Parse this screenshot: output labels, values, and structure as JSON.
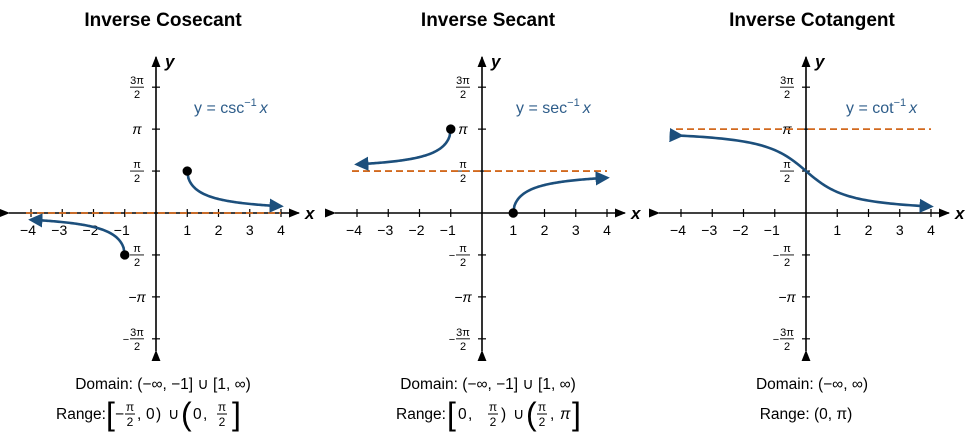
{
  "colors": {
    "curve": "#1c4f7c",
    "asymptote": "#d2691e",
    "axis": "#000000",
    "label": "#2e5d8a"
  },
  "chart_data": [
    {
      "type": "line",
      "title": "Inverse Cosecant",
      "equation": {
        "lhs": "y = csc",
        "sup": "−1",
        "var": "x"
      },
      "xlabel": "x",
      "ylabel": "y",
      "xlim": [
        -4,
        4
      ],
      "ylim": [
        -4.712,
        4.712
      ],
      "x_ticks": [
        "−4",
        "−3",
        "−2",
        "−1",
        "1",
        "2",
        "3",
        "4"
      ],
      "y_ticks": [
        {
          "top": "3π",
          "bottom": "2"
        },
        {
          "text": "π"
        },
        {
          "top": "π",
          "bottom": "2"
        },
        {
          "top": "π",
          "bottom": "2",
          "neg": true
        },
        {
          "text": "π",
          "neg": true
        },
        {
          "top": "3π",
          "bottom": "2",
          "neg": true
        }
      ],
      "function": "arccsc",
      "domain_pieces": [
        [
          1,
          4
        ],
        [
          -4,
          -1
        ]
      ],
      "endpoints": [
        {
          "x": 1,
          "y": 1.5708,
          "closed": true
        },
        {
          "x": -1,
          "y": -1.5708,
          "closed": true
        }
      ],
      "asymptotes": [
        0
      ],
      "domain_text": "Domain: (−∞, −1] ∪ [1, ∞)",
      "range": {
        "prefix": "Range:",
        "left_bracket": "[",
        "a_neg": "−",
        "a_top": "π",
        "a_bottom": "2",
        "comma1": ",",
        "a2": "0",
        "close1": ")",
        "union": "∪",
        "open2": "(",
        "b1": "0",
        "comma2": ",",
        "b_top": "π",
        "b_bottom": "2",
        "right_bracket": "]"
      }
    },
    {
      "type": "line",
      "title": "Inverse Secant",
      "equation": {
        "lhs": "y = sec",
        "sup": "−1",
        "var": "x"
      },
      "xlabel": "x",
      "ylabel": "y",
      "xlim": [
        -4,
        4
      ],
      "ylim": [
        -4.712,
        4.712
      ],
      "x_ticks": [
        "−4",
        "−3",
        "−2",
        "−1",
        "1",
        "2",
        "3",
        "4"
      ],
      "y_ticks": [
        {
          "top": "3π",
          "bottom": "2"
        },
        {
          "text": "π"
        },
        {
          "top": "π",
          "bottom": "2"
        },
        {
          "top": "π",
          "bottom": "2",
          "neg": true
        },
        {
          "text": "π",
          "neg": true
        },
        {
          "top": "3π",
          "bottom": "2",
          "neg": true
        }
      ],
      "function": "arcsec",
      "domain_pieces": [
        [
          1,
          4
        ],
        [
          -4,
          -1
        ]
      ],
      "endpoints": [
        {
          "x": 1,
          "y": 0,
          "closed": true
        },
        {
          "x": -1,
          "y": 3.1416,
          "closed": true
        }
      ],
      "asymptotes": [
        1.5708
      ],
      "domain_text": "Domain: (−∞, −1] ∪ [1, ∞)",
      "range": {
        "prefix": "Range:",
        "left_bracket": "[",
        "a1": "0",
        "comma1": ",",
        "a_top": "π",
        "a_bottom": "2",
        "close1": ")",
        "union": "∪",
        "open2": "(",
        "b_top": "π",
        "b_bottom": "2",
        "comma2": ",",
        "b2": "π",
        "right_bracket": "]"
      }
    },
    {
      "type": "line",
      "title": "Inverse Cotangent",
      "equation": {
        "lhs": "y = cot",
        "sup": "−1",
        "var": "x"
      },
      "xlabel": "x",
      "ylabel": "y",
      "xlim": [
        -4,
        4
      ],
      "ylim": [
        -4.712,
        4.712
      ],
      "x_ticks": [
        "−4",
        "−3",
        "−2",
        "−1",
        "1",
        "2",
        "3",
        "4"
      ],
      "y_ticks": [
        {
          "top": "3π",
          "bottom": "2"
        },
        {
          "text": "π"
        },
        {
          "top": "π",
          "bottom": "2"
        },
        {
          "top": "π",
          "bottom": "2",
          "neg": true
        },
        {
          "text": "π",
          "neg": true
        },
        {
          "top": "3π",
          "bottom": "2",
          "neg": true
        }
      ],
      "function": "arccot",
      "domain_pieces": [
        [
          -4,
          4
        ]
      ],
      "endpoints": [],
      "asymptotes": [
        3.1416
      ],
      "domain_text": "Domain: (−∞, ∞)",
      "range_text": "Range: (0, π)"
    }
  ]
}
